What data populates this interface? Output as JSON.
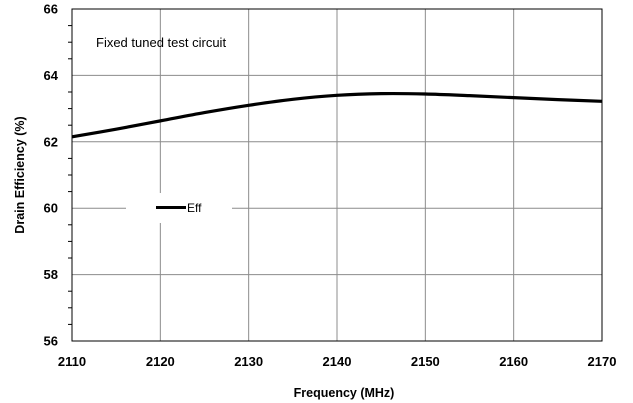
{
  "chart_data": {
    "type": "line",
    "xlabel": "Frequency (MHz)",
    "ylabel": "Drain Efficiency (%)",
    "xlim": [
      2110,
      2170
    ],
    "ylim": [
      56,
      66
    ],
    "xticks": [
      2110,
      2120,
      2130,
      2140,
      2150,
      2160,
      2170
    ],
    "yticks": [
      56,
      58,
      60,
      62,
      64,
      66
    ],
    "grid": true,
    "annotation": "Fixed tuned test circuit",
    "legend_position": "left-center",
    "series": [
      {
        "name": "Eff",
        "color": "#000000",
        "x": [
          2110,
          2115,
          2120,
          2125,
          2130,
          2135,
          2140,
          2145,
          2150,
          2155,
          2160,
          2165,
          2170
        ],
        "y": [
          62.15,
          62.38,
          62.63,
          62.88,
          63.1,
          63.28,
          63.4,
          63.45,
          63.44,
          63.39,
          63.33,
          63.27,
          63.22
        ]
      }
    ]
  }
}
